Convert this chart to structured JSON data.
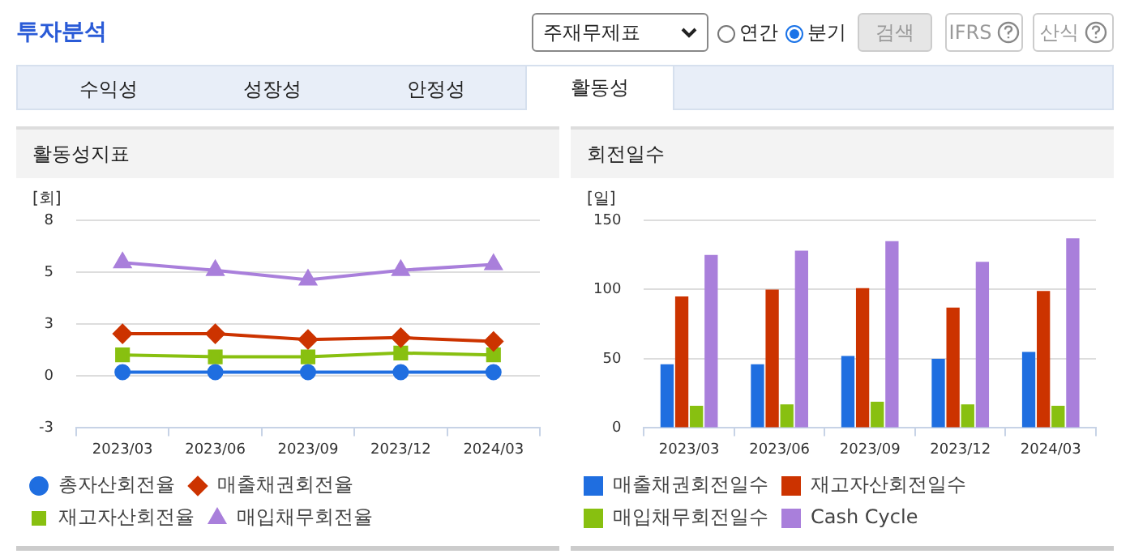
{
  "chart_data": [
    {
      "type": "other",
      "title": "투자분석",
      "annotations": [
        "주재무제표",
        "연간",
        "분기",
        "검색",
        "IFRS",
        "산식",
        "수익성",
        "성장성",
        "안정성",
        "활동성"
      ]
    },
    {
      "type": "line",
      "title": "활동성지표",
      "ylabel": "[회]",
      "categories": [
        "2023/03",
        "2023/06",
        "2023/09",
        "2023/12",
        "2024/03"
      ],
      "ylim": [
        -2.7,
        8.1
      ],
      "yticks": [
        {
          "value": -2.7,
          "label": "-3"
        },
        {
          "value": 0,
          "label": "0"
        },
        {
          "value": 2.7,
          "label": "3"
        },
        {
          "value": 5.4,
          "label": "5"
        },
        {
          "value": 8.1,
          "label": "8"
        }
      ],
      "grid": "y",
      "legend": "bottom",
      "line_style": "solid",
      "series": [
        {
          "name": "총자산회전율",
          "color": "#1f6ee0",
          "marker": "circle",
          "values": [
            0.2,
            0.2,
            0.2,
            0.2,
            0.2
          ]
        },
        {
          "name": "매출채권회전율",
          "color": "#cc3300",
          "marker": "diamond",
          "values": [
            2.2,
            2.2,
            1.9,
            2,
            1.8
          ]
        },
        {
          "name": "재고자산회전율",
          "color": "#88c010",
          "marker": "square",
          "values": [
            1.1,
            1,
            1,
            1.2,
            1.1
          ]
        },
        {
          "name": "매입채무회전율",
          "color": "#a97fdb",
          "marker": "triangle",
          "values": [
            5.9,
            5.5,
            5,
            5.5,
            5.8
          ]
        }
      ]
    },
    {
      "type": "bar",
      "title": "회전일수",
      "ylabel": "[일]",
      "categories": [
        "2023/03",
        "2023/06",
        "2023/09",
        "2023/12",
        "2024/03"
      ],
      "ylim": [
        0,
        150
      ],
      "yticks": [
        0,
        50,
        100,
        150
      ],
      "grid": "y",
      "legend": "bottom",
      "series": [
        {
          "name": "매출채권회전일수",
          "color": "#1f6ee0",
          "values": [
            46,
            46,
            52,
            50,
            55
          ]
        },
        {
          "name": "재고자산회전일수",
          "color": "#cc3300",
          "values": [
            95,
            100,
            101,
            87,
            99
          ]
        },
        {
          "name": "매입채무회전일수",
          "color": "#88c010",
          "values": [
            16,
            17,
            19,
            17,
            16
          ]
        },
        {
          "name": "Cash Cycle",
          "color": "#a97fdb",
          "values": [
            125,
            128,
            135,
            120,
            137
          ]
        }
      ]
    }
  ]
}
